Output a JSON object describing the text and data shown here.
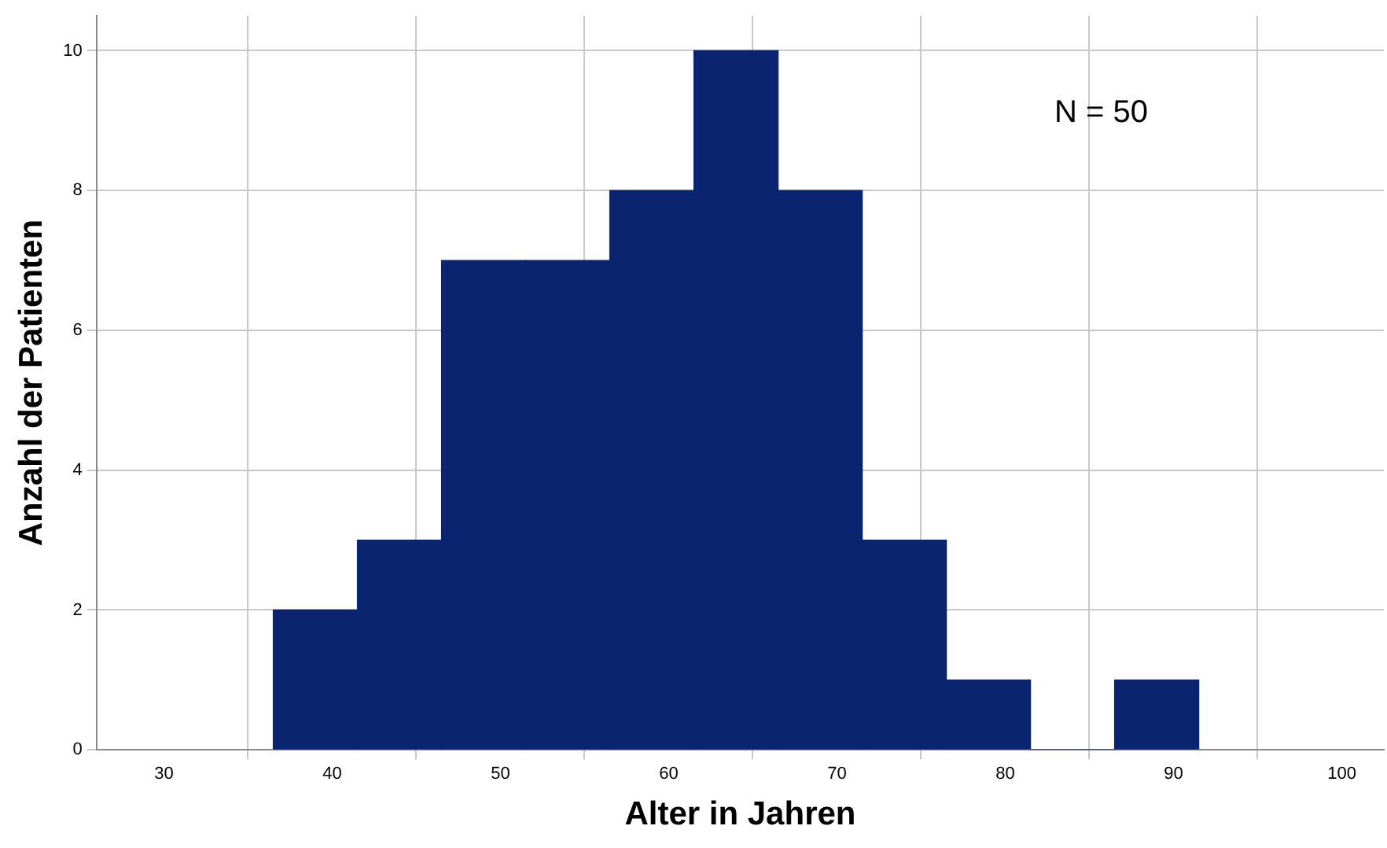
{
  "chart_data": {
    "type": "histogram",
    "xlabel": "Alter in Jahren",
    "ylabel": "Anzahl der Patienten",
    "annotations": [
      "N = 50"
    ],
    "bins": [
      36.5,
      41.5,
      46.5,
      51.5,
      56.5,
      61.5,
      66.5,
      71.5,
      76.5,
      81.5,
      86.5,
      91.5
    ],
    "values": [
      2,
      3,
      7,
      7,
      8,
      10,
      8,
      3,
      1,
      0,
      1
    ],
    "color": "#0b2470",
    "xlim": [
      26,
      102.5
    ],
    "xticks": [
      30,
      40,
      50,
      60,
      70,
      80,
      90,
      100
    ],
    "ylim": [
      0,
      10.5
    ],
    "yticks": [
      0,
      2,
      4,
      6,
      8,
      10
    ],
    "grid": true
  }
}
